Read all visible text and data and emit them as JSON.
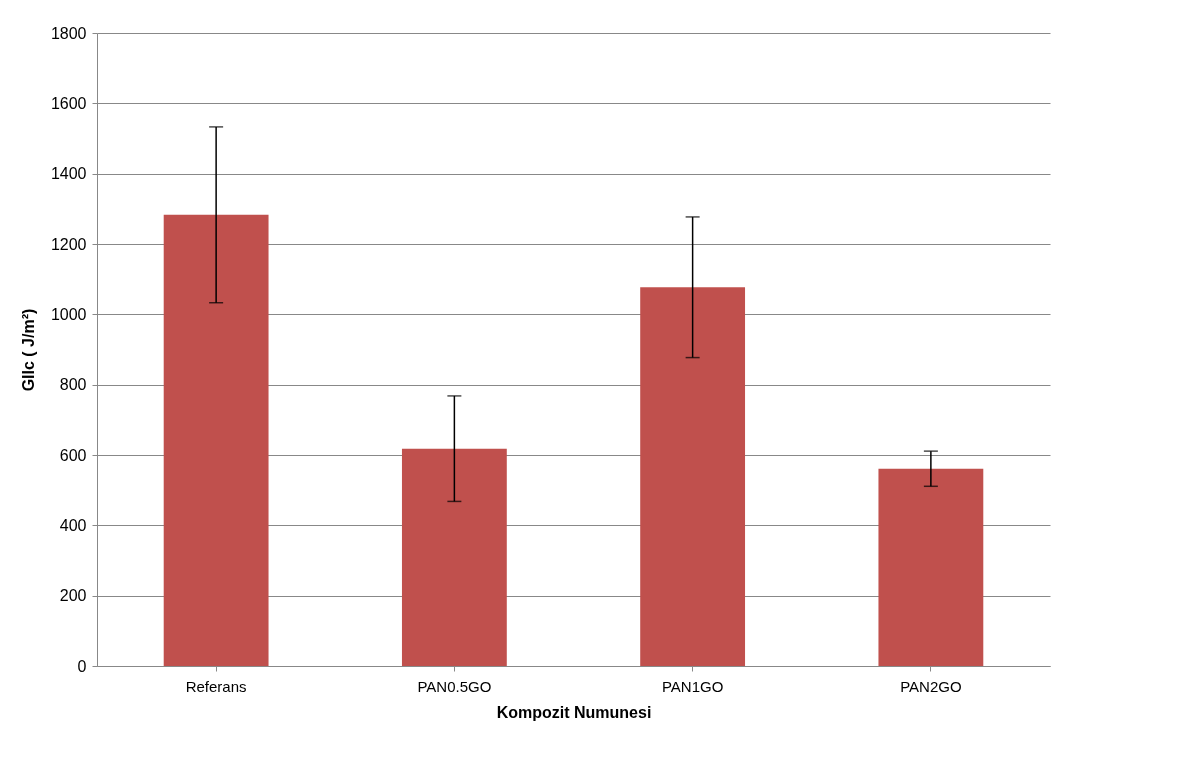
{
  "chart_data": {
    "type": "bar",
    "xlabel": "Kompozit Numunesi",
    "ylabel": "GIIc ( J/m²)",
    "categories": [
      "Referans",
      "PAN0.5GO",
      "PAN1GO",
      "PAN2GO"
    ],
    "values": [
      1283,
      618,
      1077,
      561
    ],
    "errors": [
      250,
      150,
      200,
      50
    ],
    "color": "#c0504d",
    "ylim": [
      0,
      1800
    ],
    "yticks": [
      0,
      200,
      400,
      600,
      800,
      1000,
      1200,
      1400,
      1600,
      1800
    ],
    "grid": "y"
  }
}
